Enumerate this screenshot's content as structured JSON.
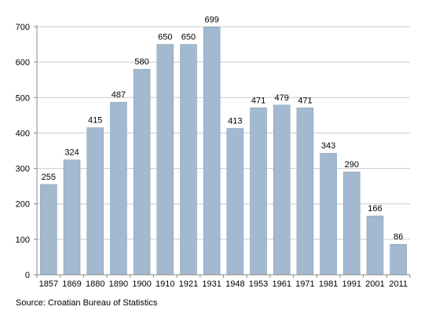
{
  "chart_data": {
    "type": "bar",
    "categories": [
      "1857",
      "1869",
      "1880",
      "1890",
      "1900",
      "1910",
      "1921",
      "1931",
      "1948",
      "1953",
      "1961",
      "1971",
      "1981",
      "1991",
      "2001",
      "2011"
    ],
    "values": [
      255,
      324,
      415,
      487,
      580,
      650,
      650,
      699,
      413,
      471,
      479,
      471,
      343,
      290,
      166,
      86
    ],
    "yticks": [
      0,
      100,
      200,
      300,
      400,
      500,
      600,
      700
    ],
    "ylim": [
      0,
      700
    ],
    "grid": true,
    "legend": "none",
    "colors": {
      "bar_fill": "#a2b9cf",
      "bar_stroke": "#8aa3bb",
      "grid": "#cccccc",
      "axis": "#888888"
    }
  },
  "source": "Source: Croatian Bureau of Statistics"
}
